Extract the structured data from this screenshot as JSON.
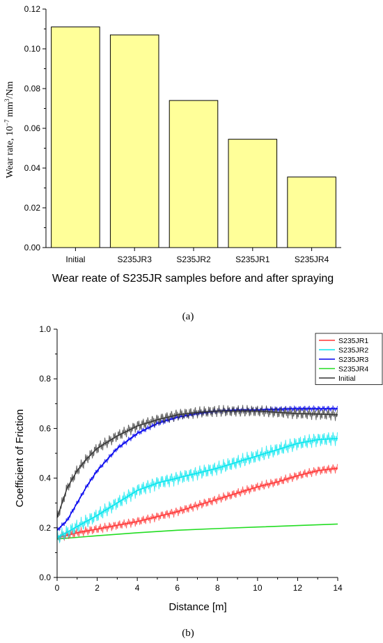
{
  "chart_data": [
    {
      "type": "bar",
      "panel_label": "(a)",
      "title": "",
      "xlabel": "Wear reate of S235JR samples before and after spraying",
      "ylabel": "Wear rate, 10⁻⁷ mm³/Nm",
      "categories": [
        "Initial",
        "S235JR3",
        "S235JR2",
        "S235JR1",
        "S235JR4"
      ],
      "values": [
        0.111,
        0.107,
        0.074,
        0.0545,
        0.0355
      ],
      "ylim": [
        0,
        0.12
      ],
      "yticks": [
        "0.00",
        "0.02",
        "0.04",
        "0.06",
        "0.08",
        "0.10",
        "0.12"
      ],
      "bar_color": "#ffff99",
      "grid": false
    },
    {
      "type": "line",
      "panel_label": "(b)",
      "title": "",
      "xlabel": "Distance [m]",
      "ylabel": "Coefficient of Friction",
      "xlim": [
        0,
        14
      ],
      "ylim": [
        0,
        1.0
      ],
      "xticks": [
        "0",
        "2",
        "4",
        "6",
        "8",
        "10",
        "12",
        "14"
      ],
      "yticks": [
        "0.0",
        "0.2",
        "0.4",
        "0.6",
        "0.8",
        "1.0"
      ],
      "legend_position": "top-right",
      "grid": false,
      "series": [
        {
          "name": "S235JR1",
          "color": "#ff3333",
          "x": [
            0,
            1,
            2,
            3,
            4,
            5,
            6,
            7,
            8,
            9,
            10,
            11,
            12,
            13,
            14
          ],
          "y": [
            0.16,
            0.18,
            0.195,
            0.21,
            0.225,
            0.245,
            0.265,
            0.29,
            0.315,
            0.34,
            0.365,
            0.385,
            0.41,
            0.43,
            0.44
          ]
        },
        {
          "name": "S235JR2",
          "color": "#00e5ee",
          "x": [
            0,
            1,
            2,
            3,
            4,
            5,
            6,
            7,
            8,
            9,
            10,
            11,
            12,
            13,
            14
          ],
          "y": [
            0.16,
            0.205,
            0.25,
            0.3,
            0.35,
            0.38,
            0.4,
            0.42,
            0.44,
            0.465,
            0.49,
            0.515,
            0.54,
            0.555,
            0.56
          ]
        },
        {
          "name": "S235JR3",
          "color": "#0000ee",
          "x": [
            0,
            0.5,
            1,
            1.5,
            2,
            3,
            4,
            5,
            6,
            7,
            8,
            9,
            10,
            11,
            12,
            13,
            14
          ],
          "y": [
            0.19,
            0.23,
            0.3,
            0.37,
            0.43,
            0.52,
            0.58,
            0.62,
            0.645,
            0.66,
            0.67,
            0.675,
            0.675,
            0.678,
            0.68,
            0.68,
            0.68
          ]
        },
        {
          "name": "S235JR4",
          "color": "#22dd22",
          "x": [
            0,
            2,
            4,
            6,
            8,
            10,
            12,
            14
          ],
          "y": [
            0.155,
            0.168,
            0.18,
            0.19,
            0.197,
            0.203,
            0.209,
            0.215
          ]
        },
        {
          "name": "Initial",
          "color": "#333333",
          "x": [
            0,
            0.5,
            1,
            1.5,
            2,
            3,
            4,
            5,
            6,
            7,
            8,
            9,
            10,
            11,
            12,
            13,
            14
          ],
          "y": [
            0.24,
            0.36,
            0.43,
            0.48,
            0.52,
            0.57,
            0.61,
            0.635,
            0.655,
            0.665,
            0.67,
            0.67,
            0.67,
            0.665,
            0.66,
            0.658,
            0.655
          ]
        }
      ]
    }
  ]
}
